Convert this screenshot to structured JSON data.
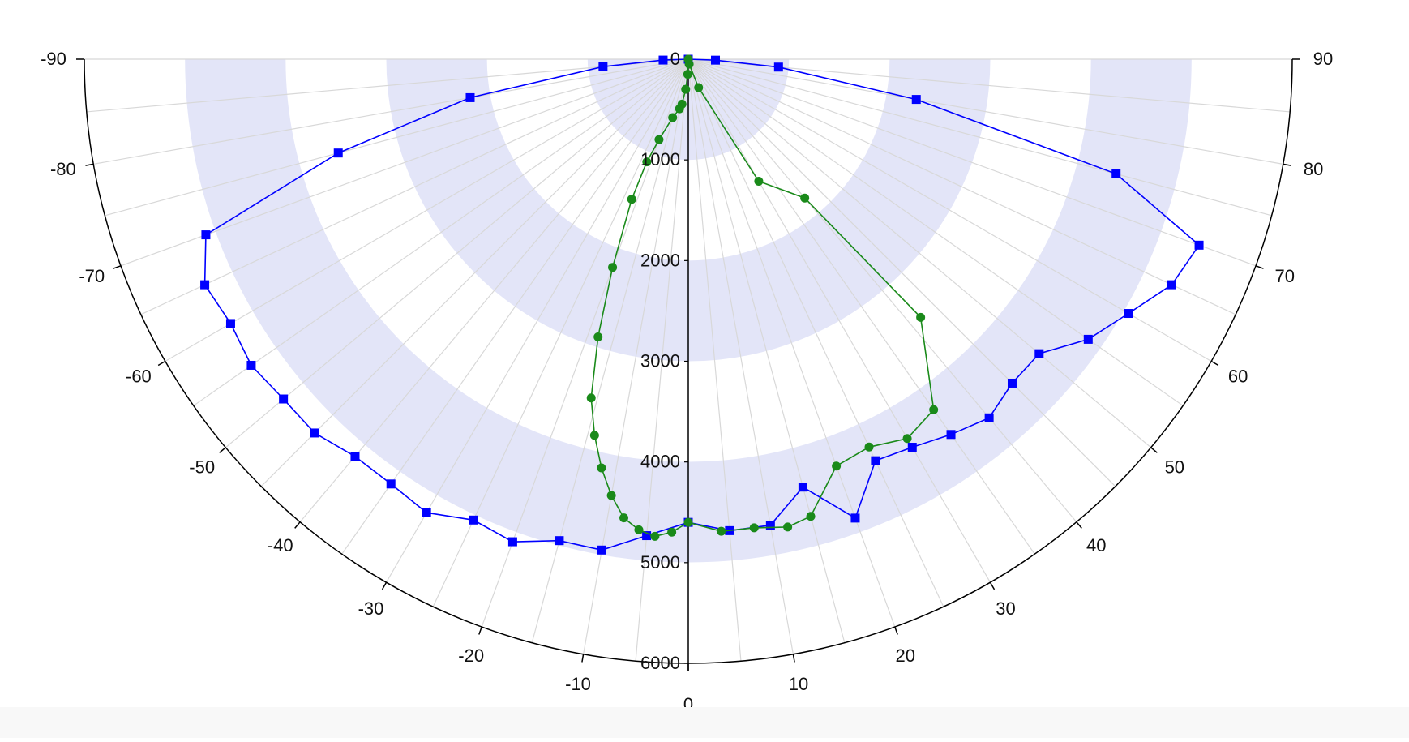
{
  "chart_data": {
    "type": "polar",
    "angular_axis": {
      "range_deg": [
        -90,
        90
      ],
      "major_step_deg": 5,
      "labels": [
        "-90",
        "-80",
        "-70",
        "-60",
        "-50",
        "-40",
        "-30",
        "-20",
        "-10",
        "0",
        "10",
        "20",
        "30",
        "40",
        "50",
        "60",
        "70",
        "80",
        "90"
      ]
    },
    "radial_axis": {
      "range": [
        0,
        6000
      ],
      "labels": [
        "0",
        "1000",
        "2000",
        "3000",
        "4000",
        "5000",
        "6000"
      ],
      "shaded_bands": [
        [
          0,
          1000
        ],
        [
          2000,
          3000
        ],
        [
          4000,
          5000
        ]
      ]
    },
    "colors": {
      "band": "#e3e5f8",
      "grid": "#d8d8d8",
      "axis": "#000000",
      "series_blue": "#0000ff",
      "series_green": "#1a8a1a"
    },
    "series": [
      {
        "color": "#0000ff",
        "marker": "square",
        "points": [
          [
            -90,
            0
          ],
          [
            -88,
            250
          ],
          [
            -85,
            850
          ],
          [
            -80,
            2200
          ],
          [
            -75,
            3600
          ],
          [
            -70,
            5100
          ],
          [
            -65,
            5300
          ],
          [
            -60,
            5250
          ],
          [
            -55,
            5300
          ],
          [
            -50,
            5250
          ],
          [
            -45,
            5250
          ],
          [
            -40,
            5150
          ],
          [
            -35,
            5150
          ],
          [
            -30,
            5200
          ],
          [
            -25,
            5050
          ],
          [
            -20,
            5100
          ],
          [
            -15,
            4950
          ],
          [
            -10,
            4950
          ],
          [
            -5,
            4750
          ],
          [
            0,
            4600
          ],
          [
            5,
            4700
          ],
          [
            10,
            4700
          ],
          [
            15,
            4400
          ],
          [
            20,
            4850
          ],
          [
            25,
            4400
          ],
          [
            30,
            4450
          ],
          [
            35,
            4550
          ],
          [
            40,
            4650
          ],
          [
            45,
            4550
          ],
          [
            50,
            4550
          ],
          [
            55,
            4850
          ],
          [
            60,
            5050
          ],
          [
            65,
            5300
          ],
          [
            70,
            5400
          ],
          [
            75,
            4400
          ],
          [
            80,
            2300
          ],
          [
            85,
            900
          ],
          [
            88,
            270
          ],
          [
            90,
            0
          ]
        ]
      },
      {
        "color": "#1a8a1a",
        "marker": "circle",
        "points": [
          [
            0,
            0
          ],
          [
            -2,
            150
          ],
          [
            -5,
            300
          ],
          [
            -8,
            450
          ],
          [
            -10,
            500
          ],
          [
            -15,
            600
          ],
          [
            -20,
            850
          ],
          [
            -22,
            1100
          ],
          [
            -22,
            1500
          ],
          [
            -20,
            2200
          ],
          [
            -18,
            2900
          ],
          [
            -16,
            3500
          ],
          [
            -14,
            3850
          ],
          [
            -12,
            4150
          ],
          [
            -10,
            4400
          ],
          [
            -8,
            4600
          ],
          [
            -6,
            4700
          ],
          [
            -4,
            4750
          ],
          [
            -2,
            4700
          ],
          [
            0,
            4600
          ],
          [
            4,
            4700
          ],
          [
            8,
            4700
          ],
          [
            12,
            4750
          ],
          [
            15,
            4700
          ],
          [
            20,
            4300
          ],
          [
            25,
            4250
          ],
          [
            30,
            4350
          ],
          [
            35,
            4250
          ],
          [
            42,
            3450
          ],
          [
            40,
            1800
          ],
          [
            30,
            1400
          ],
          [
            20,
            300
          ],
          [
            10,
            50
          ],
          [
            0,
            0
          ]
        ]
      }
    ]
  }
}
